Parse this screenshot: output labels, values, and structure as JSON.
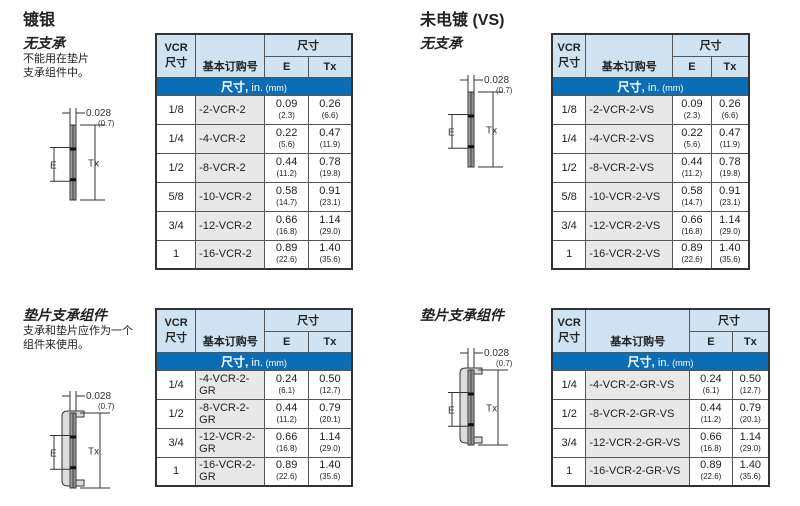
{
  "sections": [
    {
      "title": "镀银"
    },
    {
      "title": "未电镀 (VS)"
    }
  ],
  "subsections": {
    "no_support": {
      "title": "无支承",
      "desc": [
        "不能用在垫片",
        "支承组件中。"
      ]
    },
    "retainer": {
      "title": "垫片支承组件",
      "desc": [
        "支承和垫片应作为一个",
        "组件来使用。"
      ]
    }
  },
  "diagram": {
    "thickness": "0.028",
    "thickness_mm": "(0.7)",
    "e_label": "E",
    "tx_label": "Tx"
  },
  "table_header": {
    "vcr": "VCR",
    "size": "尺寸",
    "part": "基本订购号",
    "dims": "尺寸",
    "e": "E",
    "tx": "Tx",
    "band_main": "尺寸,",
    "band_in": " in.",
    "band_mm": " (mm)"
  },
  "tables": [
    {
      "rows": [
        {
          "size": "1/8",
          "part": "-2-VCR-2",
          "e": "0.09",
          "e_mm": "(2.3)",
          "tx": "0.26",
          "tx_mm": "(6.6)"
        },
        {
          "size": "1/4",
          "part": "-4-VCR-2",
          "e": "0.22",
          "e_mm": "(5.6)",
          "tx": "0.47",
          "tx_mm": "(11.9)"
        },
        {
          "size": "1/2",
          "part": "-8-VCR-2",
          "e": "0.44",
          "e_mm": "(11.2)",
          "tx": "0.78",
          "tx_mm": "(19.8)"
        },
        {
          "size": "5/8",
          "part": "-10-VCR-2",
          "e": "0.58",
          "e_mm": "(14.7)",
          "tx": "0.91",
          "tx_mm": "(23.1)"
        },
        {
          "size": "3/4",
          "part": "-12-VCR-2",
          "e": "0.66",
          "e_mm": "(16.8)",
          "tx": "1.14",
          "tx_mm": "(29.0)"
        },
        {
          "size": "1",
          "part": "-16-VCR-2",
          "e": "0.89",
          "e_mm": "(22.6)",
          "tx": "1.40",
          "tx_mm": "(35.6)"
        }
      ]
    },
    {
      "rows": [
        {
          "size": "1/8",
          "part": "-2-VCR-2-VS",
          "e": "0.09",
          "e_mm": "(2.3)",
          "tx": "0.26",
          "tx_mm": "(6.6)"
        },
        {
          "size": "1/4",
          "part": "-4-VCR-2-VS",
          "e": "0.22",
          "e_mm": "(5.6)",
          "tx": "0.47",
          "tx_mm": "(11.9)"
        },
        {
          "size": "1/2",
          "part": "-8-VCR-2-VS",
          "e": "0.44",
          "e_mm": "(11.2)",
          "tx": "0.78",
          "tx_mm": "(19.8)"
        },
        {
          "size": "5/8",
          "part": "-10-VCR-2-VS",
          "e": "0.58",
          "e_mm": "(14.7)",
          "tx": "0.91",
          "tx_mm": "(23.1)"
        },
        {
          "size": "3/4",
          "part": "-12-VCR-2-VS",
          "e": "0.66",
          "e_mm": "(16.8)",
          "tx": "1.14",
          "tx_mm": "(29.0)"
        },
        {
          "size": "1",
          "part": "-16-VCR-2-VS",
          "e": "0.89",
          "e_mm": "(22.6)",
          "tx": "1.40",
          "tx_mm": "(35.6)"
        }
      ]
    },
    {
      "rows": [
        {
          "size": "1/4",
          "part": "-4-VCR-2-GR",
          "e": "0.24",
          "e_mm": "(6.1)",
          "tx": "0.50",
          "tx_mm": "(12.7)"
        },
        {
          "size": "1/2",
          "part": "-8-VCR-2-GR",
          "e": "0.44",
          "e_mm": "(11.2)",
          "tx": "0.79",
          "tx_mm": "(20.1)"
        },
        {
          "size": "3/4",
          "part": "-12-VCR-2-GR",
          "e": "0.66",
          "e_mm": "(16.8)",
          "tx": "1.14",
          "tx_mm": "(29.0)"
        },
        {
          "size": "1",
          "part": "-16-VCR-2-GR",
          "e": "0.89",
          "e_mm": "(22.6)",
          "tx": "1.40",
          "tx_mm": "(35.6)"
        }
      ]
    },
    {
      "rows": [
        {
          "size": "1/4",
          "part": "-4-VCR-2-GR-VS",
          "e": "0.24",
          "e_mm": "(6.1)",
          "tx": "0.50",
          "tx_mm": "(12.7)"
        },
        {
          "size": "1/2",
          "part": "-8-VCR-2-GR-VS",
          "e": "0.44",
          "e_mm": "(11.2)",
          "tx": "0.79",
          "tx_mm": "(20.1)"
        },
        {
          "size": "3/4",
          "part": "-12-VCR-2-GR-VS",
          "e": "0.66",
          "e_mm": "(16.8)",
          "tx": "1.14",
          "tx_mm": "(29.0)"
        },
        {
          "size": "1",
          "part": "-16-VCR-2-GR-VS",
          "e": "0.89",
          "e_mm": "(22.6)",
          "tx": "1.40",
          "tx_mm": "(35.6)"
        }
      ]
    }
  ],
  "colors": {
    "header_bg": "#cfe3f3",
    "band_bg": "#0b6db3",
    "part_bg": "#e8e8e8"
  }
}
